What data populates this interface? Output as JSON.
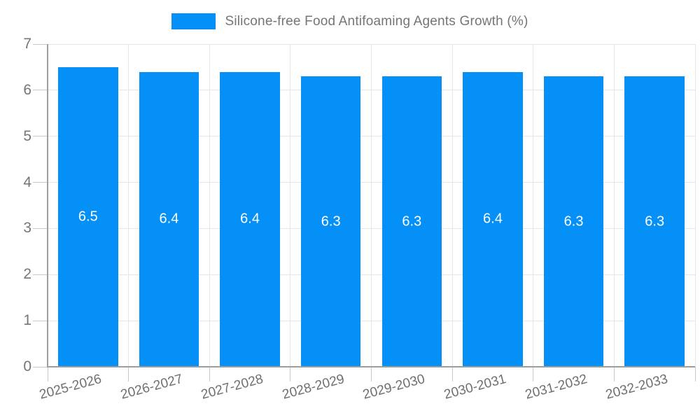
{
  "legend": {
    "label": "Silicone-free Food Antifoaming Agents Growth (%)"
  },
  "colors": {
    "bar": "#0590f8",
    "grid": "#e6e6e6",
    "axis": "#9e9e9e",
    "tick_mark": "#c9c9c9",
    "axis_text": "#757575",
    "x_text": "#6f6f6f",
    "bar_label": "#ffffff",
    "background": "#ffffff"
  },
  "chart_data": {
    "type": "bar",
    "title": "Silicone-free Food Antifoaming Agents Growth (%)",
    "xlabel": "",
    "ylabel": "",
    "categories": [
      "2025-2026",
      "2026-2027",
      "2027-2028",
      "2028-2029",
      "2029-2030",
      "2030-2031",
      "2031-2032",
      "2032-2033"
    ],
    "series": [
      {
        "name": "Silicone-free Food Antifoaming Agents Growth (%)",
        "values": [
          6.5,
          6.4,
          6.4,
          6.3,
          6.3,
          6.4,
          6.3,
          6.3
        ]
      }
    ],
    "bar_value_labels": [
      "6.5",
      "6.4",
      "6.4",
      "6.3",
      "6.3",
      "6.4",
      "6.3",
      "6.3"
    ],
    "ylim": [
      0,
      7
    ],
    "yticks": [
      0,
      1,
      2,
      3,
      4,
      5,
      6,
      7
    ],
    "grid": true,
    "legend_position": "top-center",
    "x_label_rotation_deg": -15
  }
}
